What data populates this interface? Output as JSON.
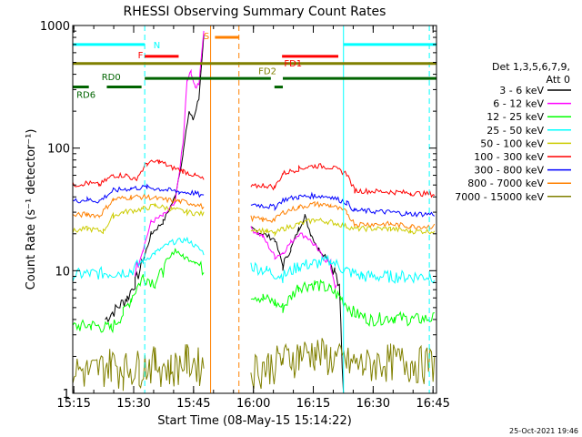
{
  "chart_data": {
    "type": "line",
    "title": "RHESSI Observing Summary Count Rates",
    "xlabel": "Start Time (08-May-15 15:14:22)",
    "ylabel": "Count Rate (s⁻¹ detector⁻¹)",
    "ylim": [
      1,
      1000
    ],
    "yscale": "log",
    "xlim_minutes": [
      15.3667,
      106.5
    ],
    "x_ticks": [
      "15:15",
      "15:30",
      "15:45",
      "16:00",
      "16:15",
      "16:30",
      "16:45"
    ],
    "y_ticks": [
      "1",
      "10",
      "100",
      "1000"
    ],
    "timestamp": "25-Oct-2021 19:46",
    "legend": {
      "placement": "right",
      "header": [
        "Det 1,3,5,6,7,9,",
        "Att 0"
      ],
      "entries": [
        {
          "label": "3 - 6 keV",
          "color": "#000000"
        },
        {
          "label": "6 - 12 keV",
          "color": "#ff00ff"
        },
        {
          "label": "12 - 25 keV",
          "color": "#00ff00"
        },
        {
          "label": "25 - 50 keV",
          "color": "#00ffff"
        },
        {
          "label": "50 - 100 keV",
          "color": "#cccc00"
        },
        {
          "label": "100 - 300 keV",
          "color": "#ff0000"
        },
        {
          "label": "300 - 800 keV",
          "color": "#0000ff"
        },
        {
          "label": "800 - 7000 keV",
          "color": "#ff8000"
        },
        {
          "label": "7000 - 15000 keV",
          "color": "#808000"
        }
      ]
    },
    "flag_bars": [
      {
        "label": "N",
        "color": "#00ffff",
        "y": 700,
        "segments": [
          [
            15.37,
            33.4
          ],
          [
            83.2,
            106.5
          ]
        ]
      },
      {
        "label": "F",
        "color": "#ff0000",
        "y": 560,
        "segments": [
          [
            33.4,
            41.9
          ]
        ]
      },
      {
        "label": "S",
        "color": "#ff8000",
        "y": 800,
        "segments": [
          [
            51.0,
            57.0
          ]
        ]
      },
      {
        "label": "FD1",
        "color": "#ff0000",
        "y": 560,
        "segments": [
          [
            67.8,
            81.9
          ]
        ]
      },
      {
        "label": "FD2",
        "color": "#808000",
        "y": 490,
        "segments": [
          [
            15.37,
            106.5
          ]
        ]
      },
      {
        "label": "RD0",
        "color": "#006400",
        "y": 370,
        "segments": [
          [
            33.4,
            65.0
          ],
          [
            68.0,
            106.5
          ]
        ]
      },
      {
        "label": "RD6",
        "color": "#006400",
        "y": 315,
        "segments": [
          [
            15.37,
            19.4
          ],
          [
            23.9,
            32.6
          ],
          [
            65.9,
            68.0
          ]
        ]
      }
    ],
    "vlines": [
      {
        "x": 33.4,
        "color": "#00ffff",
        "style": "dashed"
      },
      {
        "x": 49.9,
        "color": "#ff8000",
        "style": "solid"
      },
      {
        "x": 57.0,
        "color": "#ff8000",
        "style": "dashed"
      },
      {
        "x": 83.2,
        "color": "#00ffff",
        "style": "solid"
      },
      {
        "x": 104.7,
        "color": "#00ffff",
        "style": "dashed"
      }
    ],
    "gap": [
      51.5,
      60.0
    ],
    "series": [
      {
        "name": "3 - 6 keV",
        "color": "#000000",
        "points": [
          [
            23.5,
            4
          ],
          [
            29,
            6
          ],
          [
            31,
            8
          ],
          [
            33,
            12
          ],
          [
            35,
            20
          ],
          [
            38,
            25
          ],
          [
            41,
            40
          ],
          [
            43,
            90
          ],
          [
            44.5,
            200
          ],
          [
            45.5,
            170
          ],
          [
            47,
            260
          ],
          [
            48.2,
            800
          ],
          [
            60,
            22
          ],
          [
            63,
            20
          ],
          [
            66,
            18
          ],
          [
            68,
            11
          ],
          [
            70,
            15
          ],
          [
            72,
            22
          ],
          [
            73.5,
            28
          ],
          [
            75,
            20
          ],
          [
            77,
            15
          ],
          [
            79,
            13
          ],
          [
            81,
            10
          ],
          [
            82.2,
            7
          ],
          [
            83.2,
            1
          ]
        ]
      },
      {
        "name": "6 - 12 keV",
        "color": "#ff00ff",
        "points": [
          [
            31,
            10
          ],
          [
            33,
            15
          ],
          [
            35,
            25
          ],
          [
            38,
            28
          ],
          [
            41,
            35
          ],
          [
            43,
            110
          ],
          [
            44,
            350
          ],
          [
            45,
            420
          ],
          [
            46,
            310
          ],
          [
            47,
            340
          ],
          [
            48.2,
            950
          ],
          [
            60,
            22
          ],
          [
            63,
            19
          ],
          [
            66,
            13
          ],
          [
            68,
            14
          ],
          [
            70,
            17
          ],
          [
            72,
            20
          ],
          [
            74,
            19
          ],
          [
            76,
            16
          ],
          [
            78,
            13
          ],
          [
            80,
            11
          ],
          [
            81.5,
            7
          ]
        ]
      },
      {
        "name": "12 - 25 keV",
        "color": "#00ff00",
        "points": [
          [
            15.4,
            3.5
          ],
          [
            20,
            3.6
          ],
          [
            25,
            3.4
          ],
          [
            28,
            4.5
          ],
          [
            30,
            6
          ],
          [
            33,
            9
          ],
          [
            36,
            8
          ],
          [
            38,
            10
          ],
          [
            41,
            15
          ],
          [
            43,
            13
          ],
          [
            46,
            12
          ],
          [
            48.2,
            10
          ],
          [
            60,
            6.5
          ],
          [
            63,
            6
          ],
          [
            66,
            5.5
          ],
          [
            68,
            5
          ],
          [
            72,
            7.5
          ],
          [
            76,
            7.8
          ],
          [
            80,
            7
          ],
          [
            82.5,
            6
          ],
          [
            86,
            4.5
          ],
          [
            90,
            4
          ],
          [
            96,
            4.2
          ],
          [
            100,
            4
          ],
          [
            106,
            4.1
          ]
        ]
      },
      {
        "name": "25 - 50 keV",
        "color": "#00ffff",
        "points": [
          [
            15.4,
            9.3
          ],
          [
            20,
            9.5
          ],
          [
            25,
            9.6
          ],
          [
            30,
            10
          ],
          [
            33,
            12
          ],
          [
            36,
            14
          ],
          [
            40,
            17
          ],
          [
            44,
            18
          ],
          [
            48.2,
            14
          ],
          [
            60,
            11
          ],
          [
            64,
            10
          ],
          [
            68,
            9
          ],
          [
            72,
            11
          ],
          [
            76,
            11.5
          ],
          [
            80,
            12
          ],
          [
            84,
            10
          ],
          [
            88,
            9
          ],
          [
            95,
            9
          ],
          [
            100,
            9
          ],
          [
            106,
            9
          ]
        ]
      },
      {
        "name": "50 - 100 keV",
        "color": "#cccc00",
        "points": [
          [
            15.4,
            21
          ],
          [
            19,
            22
          ],
          [
            23,
            21
          ],
          [
            25.5,
            28
          ],
          [
            28,
            30
          ],
          [
            33,
            32
          ],
          [
            36,
            34
          ],
          [
            40,
            32
          ],
          [
            44,
            30
          ],
          [
            48.2,
            29
          ],
          [
            60,
            22
          ],
          [
            64,
            21
          ],
          [
            66,
            20
          ],
          [
            68,
            22
          ],
          [
            72,
            24
          ],
          [
            76,
            26
          ],
          [
            80,
            25
          ],
          [
            84,
            23
          ],
          [
            86,
            22
          ],
          [
            95,
            22
          ],
          [
            100,
            21
          ],
          [
            106,
            21
          ]
        ]
      },
      {
        "name": "100 - 300 keV",
        "color": "#ff0000",
        "points": [
          [
            15.4,
            50
          ],
          [
            19,
            52
          ],
          [
            22,
            50
          ],
          [
            25.5,
            60
          ],
          [
            29,
            60
          ],
          [
            31,
            55
          ],
          [
            34,
            75
          ],
          [
            37,
            78
          ],
          [
            40,
            70
          ],
          [
            43,
            65
          ],
          [
            46,
            60
          ],
          [
            48.2,
            55
          ],
          [
            60,
            48
          ],
          [
            63,
            50
          ],
          [
            66,
            48
          ],
          [
            68,
            62
          ],
          [
            72,
            68
          ],
          [
            76,
            72
          ],
          [
            80,
            70
          ],
          [
            84,
            62
          ],
          [
            86,
            45
          ],
          [
            95,
            44
          ],
          [
            100,
            43
          ],
          [
            106,
            42
          ]
        ]
      },
      {
        "name": "300 - 800 keV",
        "color": "#0000ff",
        "points": [
          [
            15.4,
            37
          ],
          [
            19,
            38
          ],
          [
            22,
            37
          ],
          [
            25.5,
            45
          ],
          [
            30,
            47
          ],
          [
            34,
            48
          ],
          [
            38,
            46
          ],
          [
            42,
            44
          ],
          [
            46,
            43
          ],
          [
            48.2,
            40
          ],
          [
            60,
            35
          ],
          [
            63,
            34
          ],
          [
            66,
            33
          ],
          [
            68,
            38
          ],
          [
            72,
            40
          ],
          [
            76,
            41
          ],
          [
            80,
            40
          ],
          [
            84,
            36
          ],
          [
            86,
            31
          ],
          [
            95,
            30
          ],
          [
            100,
            29
          ],
          [
            106,
            29
          ]
        ]
      },
      {
        "name": "800 - 7000 keV",
        "color": "#ff8000",
        "points": [
          [
            15.4,
            28
          ],
          [
            19,
            29
          ],
          [
            22,
            28
          ],
          [
            25.5,
            38
          ],
          [
            30,
            40
          ],
          [
            34,
            40
          ],
          [
            38,
            38
          ],
          [
            42,
            37
          ],
          [
            46,
            35
          ],
          [
            48.2,
            33
          ],
          [
            60,
            27
          ],
          [
            63,
            26
          ],
          [
            66,
            26
          ],
          [
            68,
            30
          ],
          [
            72,
            33
          ],
          [
            76,
            35
          ],
          [
            80,
            34
          ],
          [
            84,
            30
          ],
          [
            86,
            24
          ],
          [
            95,
            24
          ],
          [
            100,
            23
          ],
          [
            106,
            23
          ]
        ]
      },
      {
        "name": "7000 - 15000 keV",
        "color": "#808000",
        "points": [
          [
            15.4,
            1.6
          ],
          [
            20,
            1.5
          ],
          [
            25,
            1.8
          ],
          [
            28,
            1.6
          ],
          [
            32,
            1.7
          ],
          [
            36,
            1.8
          ],
          [
            40,
            1.6
          ],
          [
            44,
            1.9
          ],
          [
            48.2,
            1.7
          ],
          [
            60,
            1.6
          ],
          [
            64,
            1.7
          ],
          [
            68,
            1.9
          ],
          [
            72,
            2.1
          ],
          [
            76,
            2.2
          ],
          [
            80,
            2.0
          ],
          [
            84,
            1.8
          ],
          [
            88,
            1.7
          ],
          [
            95,
            1.9
          ],
          [
            100,
            1.8
          ],
          [
            106,
            1.8
          ]
        ]
      }
    ]
  }
}
